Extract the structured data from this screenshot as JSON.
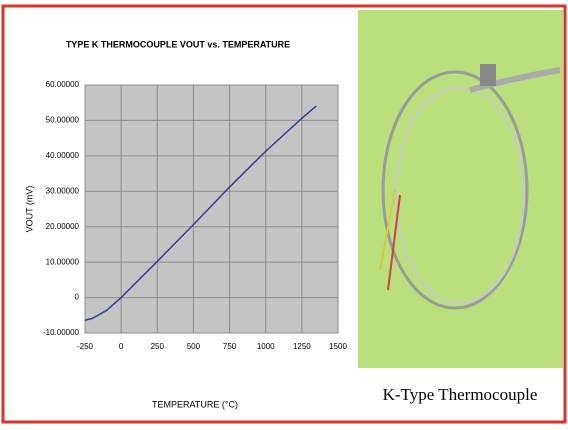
{
  "chart_data": {
    "type": "line",
    "title": "TYPE K THERMOCOUPLE VOUT vs. TEMPERATURE",
    "x_label": "TEMPERATURE (°C)",
    "y_label": "VOUT (mV)",
    "x": [
      -250,
      -200,
      -100,
      0,
      100,
      250,
      500,
      750,
      1000,
      1250,
      1350
    ],
    "series": [
      {
        "color": "#2f3f8f",
        "values": [
          -6.4,
          -5.9,
          -3.6,
          0,
          4.1,
          10.2,
          20.6,
          31.2,
          41.3,
          50.6,
          54.1
        ]
      }
    ],
    "xlim": [
      -250,
      1500
    ],
    "xticks": [
      -250,
      0,
      250,
      500,
      750,
      1000,
      1250,
      1500
    ],
    "ylim": [
      -10,
      60
    ],
    "yticks": [
      {
        "value": -10,
        "label": "-10.00000"
      },
      0,
      {
        "value": 10,
        "label": "10.00000"
      },
      {
        "value": 20,
        "label": "20.00000"
      },
      {
        "value": 30,
        "label": "30.00000"
      },
      {
        "value": 40,
        "label": "40.00000"
      },
      {
        "value": 50,
        "label": "50.00000"
      },
      {
        "value": 60,
        "label": "60.00000"
      }
    ],
    "grid": true
  },
  "photo": {
    "caption": "K-Type Thermocouple"
  }
}
